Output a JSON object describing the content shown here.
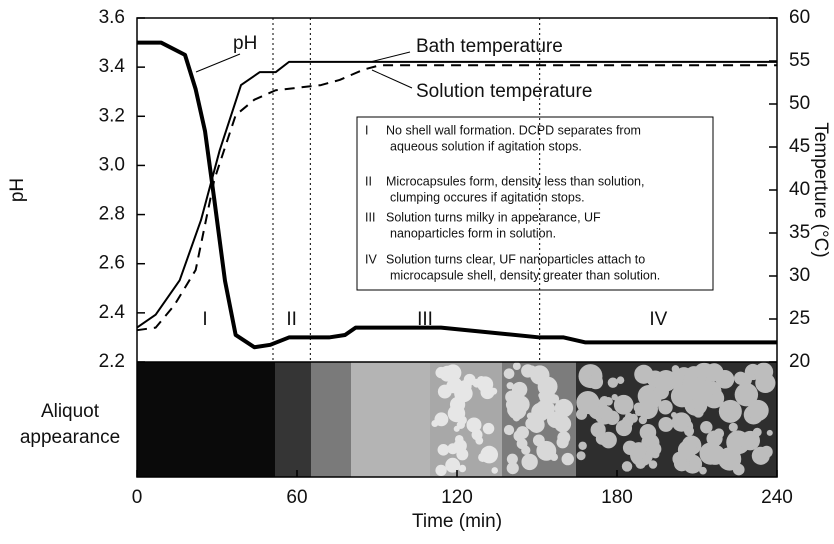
{
  "chart_data": {
    "type": "line",
    "x_label": "Time (min)",
    "y_label": "pH",
    "y2_label": "Temperture (°C)",
    "xlim": [
      0,
      240
    ],
    "xticks": [
      0,
      60,
      120,
      180,
      240
    ],
    "ylim": [
      2.2,
      3.6
    ],
    "yticks": [
      2.2,
      2.4,
      2.6,
      2.8,
      {
        "value": 3,
        "label": "3.0"
      },
      3.2,
      3.4,
      3.6
    ],
    "y2lim": [
      20,
      60
    ],
    "y2ticks": [
      20,
      25,
      30,
      35,
      40,
      45,
      50,
      55,
      60
    ],
    "series": [
      {
        "name": "pH",
        "color": "#000000",
        "axis": "y",
        "x": [
          0,
          9,
          18,
          22,
          25.5,
          29,
          33,
          37,
          44,
          50,
          57,
          72,
          78,
          82,
          114,
          151,
          160,
          168,
          240
        ],
        "values": [
          3.5,
          3.5,
          3.45,
          3.31,
          3.14,
          2.86,
          2.53,
          2.31,
          2.26,
          2.27,
          2.3,
          2.3,
          2.31,
          2.34,
          2.34,
          2.3,
          2.3,
          2.28,
          2.28
        ]
      },
      {
        "name": "Bath temperature",
        "color": "#000000",
        "axis": "y2",
        "x": [
          0,
          7,
          16,
          24,
          31,
          39,
          46,
          52,
          57,
          240
        ],
        "values": [
          24,
          25.5,
          29.5,
          36.5,
          44.6,
          52.2,
          53.7,
          53.7,
          54.9,
          54.9
        ]
      },
      {
        "name": "Solution temperature",
        "color": "#000000",
        "axis": "y2",
        "x": [
          0,
          7,
          14,
          22,
          29,
          37,
          44,
          52,
          69,
          76,
          85,
          91,
          240
        ],
        "values": [
          23.7,
          24,
          26.6,
          30.7,
          41.2,
          48.7,
          50.5,
          51.6,
          52.2,
          52.8,
          54,
          54.5,
          54.5
        ]
      }
    ],
    "phase_boundaries": [
      51,
      65,
      151
    ],
    "phases": [
      "I",
      "II",
      "III",
      "IV"
    ],
    "aliquot_label": [
      "Aliquot",
      "appearance"
    ],
    "notes": [
      {
        "numeral": "I",
        "lines": [
          "No shell wall formation.  DCPD separates from",
          "aqueous solution if agitation stops."
        ]
      },
      {
        "numeral": "II",
        "lines": [
          "Microcapsules form,  density less than solution,",
          "clumping occures if agitation stops."
        ]
      },
      {
        "numeral": "III",
        "lines": [
          "Solution turns milky in appearance, UF",
          "nanoparticles form in solution."
        ]
      },
      {
        "numeral": "IV",
        "lines": [
          "Solution turns clear, UF nanoparticles attach to",
          "microcapsule shell, density greater than solution."
        ]
      }
    ]
  }
}
